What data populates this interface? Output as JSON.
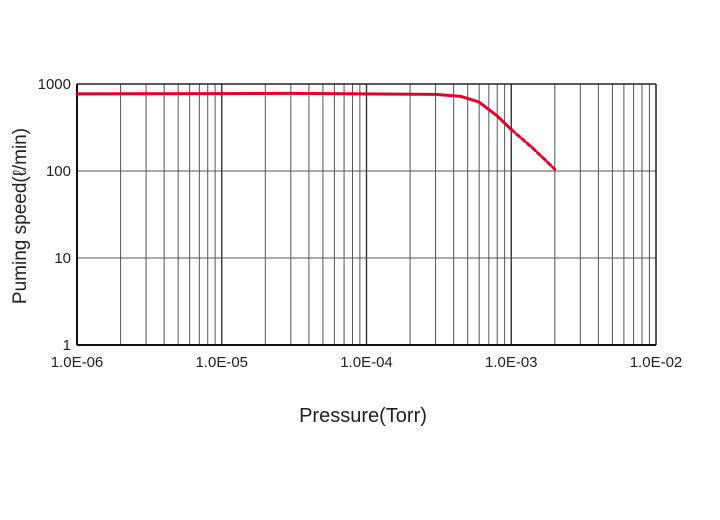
{
  "chart_data": {
    "type": "line",
    "x_scale": "log",
    "y_scale": "log",
    "xlabel": "Pressure(Torr)",
    "ylabel": "Puming speed(ℓ/min)",
    "xlim": [
      1e-06,
      0.01
    ],
    "ylim": [
      1,
      1000
    ],
    "grid": true,
    "x_ticks": [
      {
        "value": 1e-06,
        "label": "1.0E-06"
      },
      {
        "value": 1e-05,
        "label": "1.0E-05"
      },
      {
        "value": 0.0001,
        "label": "1.0E-04"
      },
      {
        "value": 0.001,
        "label": "1.0E-03"
      },
      {
        "value": 0.01,
        "label": "1.0E-02"
      }
    ],
    "y_ticks": [
      {
        "value": 1,
        "label": "1"
      },
      {
        "value": 10,
        "label": "10"
      },
      {
        "value": 100,
        "label": "100"
      },
      {
        "value": 1000,
        "label": "1000"
      }
    ],
    "series": [
      {
        "color": "#e0002a",
        "style": "solid",
        "x": [
          1e-06,
          1e-05,
          3e-05,
          0.0001,
          0.0003,
          0.00045,
          0.0006,
          0.0008,
          0.001
        ],
        "y": [
          770,
          775,
          780,
          770,
          760,
          720,
          620,
          430,
          300
        ]
      },
      {
        "color": "#e0002a",
        "style": "dashed",
        "x": [
          0.001,
          0.0014,
          0.002
        ],
        "y": [
          300,
          185,
          105
        ]
      }
    ]
  }
}
